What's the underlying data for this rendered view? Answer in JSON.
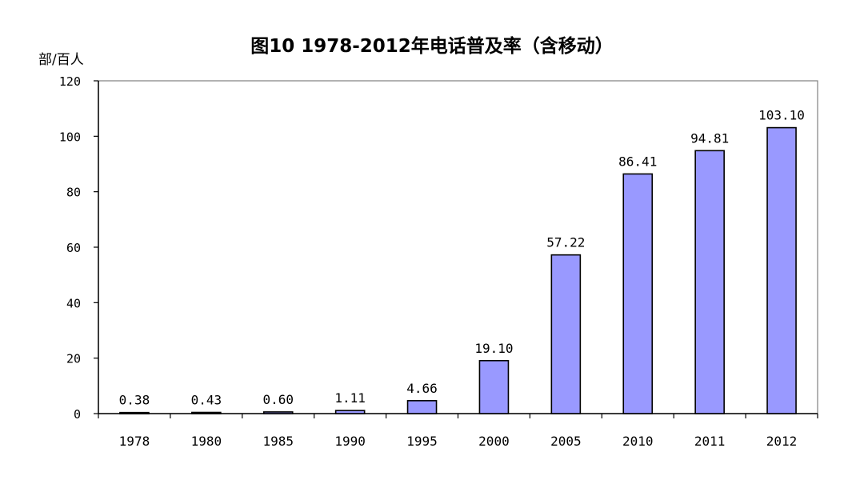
{
  "chart_data": {
    "type": "bar",
    "title": "图10 1978-2012年电话普及率（含移动）",
    "ylabel": "部/百人",
    "xlabel": "",
    "categories": [
      "1978",
      "1980",
      "1985",
      "1990",
      "1995",
      "2000",
      "2005",
      "2010",
      "2011",
      "2012"
    ],
    "values": [
      0.38,
      0.43,
      0.6,
      1.11,
      4.66,
      19.1,
      57.22,
      86.41,
      94.81,
      103.1
    ],
    "value_labels": [
      "0.38",
      "0.43",
      "0.60",
      "1.11",
      "4.66",
      "19.10",
      "57.22",
      "86.41",
      "94.81",
      "103.10"
    ],
    "ylim": [
      0,
      120
    ],
    "yticks": [
      "0",
      "20",
      "40",
      "60",
      "80",
      "100",
      "120"
    ],
    "grid": false,
    "bar_color": "#9999ff",
    "bar_edge_color": "#000000"
  }
}
